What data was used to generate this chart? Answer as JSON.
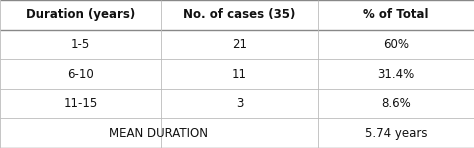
{
  "headers": [
    "Duration (years)",
    "No. of cases (35)",
    "% of Total"
  ],
  "rows": [
    [
      "1-5",
      "21",
      "60%"
    ],
    [
      "6-10",
      "11",
      "31.4%"
    ],
    [
      "11-15",
      "3",
      "8.6%"
    ]
  ],
  "footer_left": "MEAN DURATION",
  "footer_right": "5.74 years",
  "bg_color": "#ffffff",
  "header_font_size": 8.5,
  "cell_font_size": 8.5,
  "footer_font_size": 8.5,
  "col_splits": [
    0.0,
    0.34,
    0.67,
    1.0
  ],
  "line_color": "#bbbbbb",
  "header_line_color": "#888888",
  "text_color": "#111111"
}
